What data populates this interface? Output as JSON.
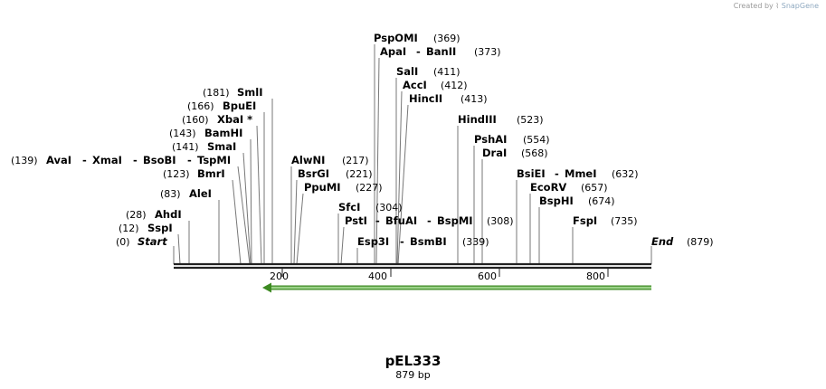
{
  "credit": {
    "prefix": "Created by",
    "brand": "SnapGene"
  },
  "plasmid": {
    "name": "pEL333",
    "size_label": "879 bp",
    "length_bp": 879
  },
  "colors": {
    "feature_arrow": "#7fc46a",
    "feature_outline": "#3d8a22",
    "backbone": "#222222",
    "leader": "#777777"
  },
  "sites": [
    {
      "name": "PspOMI",
      "pos": "(369)",
      "bp": 369
    },
    {
      "name": "ApaI",
      "pos": "",
      "bp": 373
    },
    {
      "name": "BanII",
      "pos": "(373)",
      "bp": 373
    },
    {
      "name": "SalI",
      "pos": "(411)",
      "bp": 411
    },
    {
      "name": "AccI",
      "pos": "(412)",
      "bp": 412
    },
    {
      "name": "HincII",
      "pos": "(413)",
      "bp": 413
    },
    {
      "name": "SmlI",
      "pos": "(181)",
      "bp": 181
    },
    {
      "name": "BpuEI",
      "pos": "(166)",
      "bp": 166
    },
    {
      "name": "XbaI *",
      "pos": "(160)",
      "bp": 160
    },
    {
      "name": "BamHI",
      "pos": "(143)",
      "bp": 143
    },
    {
      "name": "SmaI",
      "pos": "(141)",
      "bp": 141
    },
    {
      "name": "AvaI",
      "pos": "(139)",
      "bp": 139
    },
    {
      "name": "XmaI",
      "pos": "",
      "bp": 139
    },
    {
      "name": "BsoBI",
      "pos": "",
      "bp": 139
    },
    {
      "name": "TspMI",
      "pos": "",
      "bp": 139
    },
    {
      "name": "BmrI",
      "pos": "(123)",
      "bp": 123
    },
    {
      "name": "AleI",
      "pos": "(83)",
      "bp": 83
    },
    {
      "name": "AhdI",
      "pos": "(28)",
      "bp": 28
    },
    {
      "name": "SspI",
      "pos": "(12)",
      "bp": 12
    },
    {
      "name": "Start",
      "pos": "(0)",
      "bp": 0
    },
    {
      "name": "AlwNI",
      "pos": "(217)",
      "bp": 217
    },
    {
      "name": "BsrGI",
      "pos": "(221)",
      "bp": 221
    },
    {
      "name": "PpuMI",
      "pos": "(227)",
      "bp": 227
    },
    {
      "name": "SfcI",
      "pos": "(304)",
      "bp": 304
    },
    {
      "name": "PstI",
      "pos": "",
      "bp": 308
    },
    {
      "name": "BfuAI",
      "pos": "",
      "bp": 308
    },
    {
      "name": "BspMI",
      "pos": "(308)",
      "bp": 308
    },
    {
      "name": "Esp3I",
      "pos": "",
      "bp": 339
    },
    {
      "name": "BsmBI",
      "pos": "(339)",
      "bp": 339
    },
    {
      "name": "HindIII",
      "pos": "(523)",
      "bp": 523
    },
    {
      "name": "PshAI",
      "pos": "(554)",
      "bp": 554
    },
    {
      "name": "DraI",
      "pos": "(568)",
      "bp": 568
    },
    {
      "name": "BsiEI",
      "pos": "",
      "bp": 632
    },
    {
      "name": "MmeI",
      "pos": "(632)",
      "bp": 632
    },
    {
      "name": "EcoRV",
      "pos": "(657)",
      "bp": 657
    },
    {
      "name": "BspHI",
      "pos": "(674)",
      "bp": 674
    },
    {
      "name": "FspI",
      "pos": "(735)",
      "bp": 735
    },
    {
      "name": "End",
      "pos": "(879)",
      "bp": 879
    }
  ],
  "ruler": {
    "ticks": [
      "200",
      "400",
      "600",
      "800"
    ],
    "tick_bp": [
      200,
      400,
      600,
      800
    ]
  },
  "feature": {
    "start_bp": 165,
    "end_bp": 879,
    "direction": "reverse"
  }
}
